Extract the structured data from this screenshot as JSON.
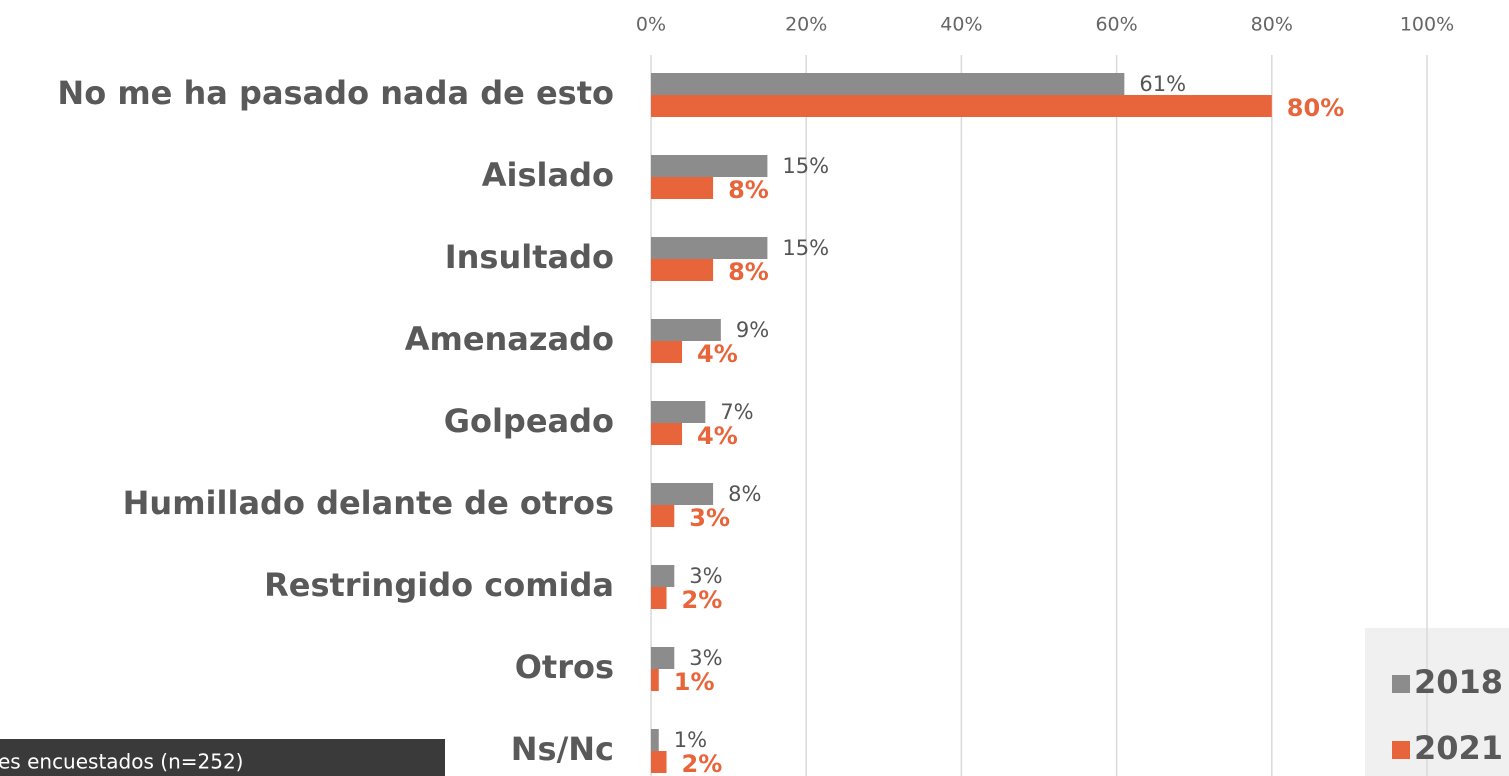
{
  "chart_data": {
    "type": "barh",
    "categories": [
      "No me ha pasado nada de esto",
      "Aislado",
      "Insultado",
      "Amenazado",
      "Golpeado",
      "Humillado delante de otros",
      "Restringido comida",
      "Otros",
      "Ns/Nc"
    ],
    "series": [
      {
        "name": "2018",
        "color": "#8c8c8c",
        "values": [
          61,
          15,
          15,
          9,
          7,
          8,
          3,
          3,
          1
        ],
        "value_labels": [
          "61%",
          "15%",
          "15%",
          "9%",
          "7%",
          "8%",
          "3%",
          "3%",
          "1%"
        ]
      },
      {
        "name": "2021",
        "color": "#e8643a",
        "values": [
          80,
          8,
          8,
          4,
          4,
          3,
          2,
          1,
          2
        ],
        "value_labels": [
          "80%",
          "8%",
          "8%",
          "4%",
          "4%",
          "3%",
          "2%",
          "1%",
          "2%"
        ]
      }
    ],
    "xlim": [
      0,
      100
    ],
    "xticks": [
      {
        "value": 0,
        "label": "0%"
      },
      {
        "value": 20,
        "label": "20%"
      },
      {
        "value": 40,
        "label": "40%"
      },
      {
        "value": 60,
        "label": "60%"
      },
      {
        "value": 80,
        "label": "80%"
      },
      {
        "value": 100,
        "label": "100%"
      }
    ],
    "grid": true,
    "note": "es encuestados (n=252)"
  }
}
